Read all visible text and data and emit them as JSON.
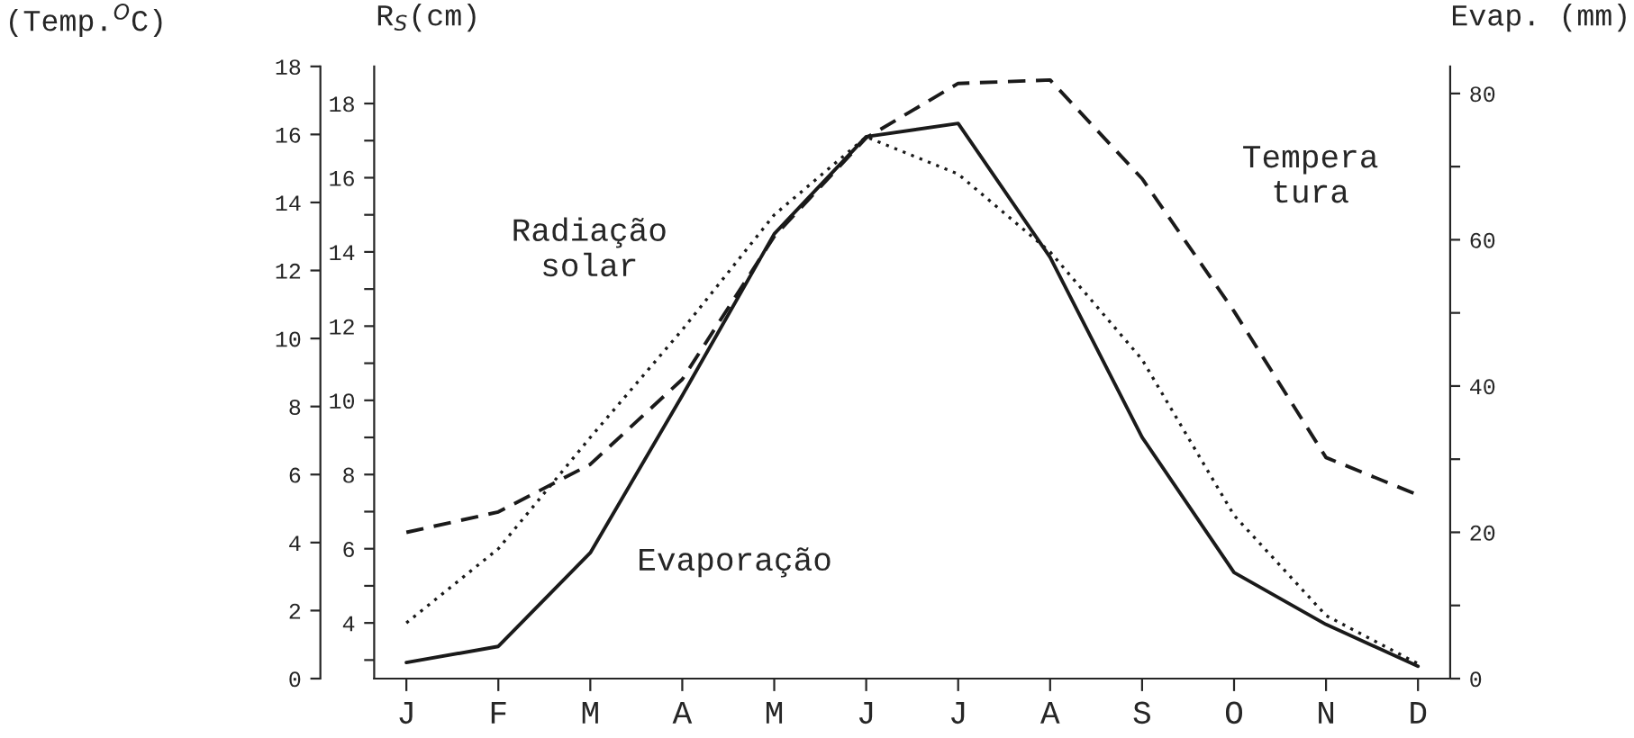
{
  "chart_data": {
    "type": "line",
    "categories": [
      "J",
      "F",
      "M",
      "A",
      "M",
      "J",
      "J",
      "A",
      "S",
      "O",
      "N",
      "D"
    ],
    "ylabel": "R$_{S}$(cm)",
    "y2label": "Evap. (mm)",
    "y3label": "(Temp.$^{O}$C)",
    "series": [
      {
        "axis": "y",
        "line_style": "dotted",
        "color": "#1a1a1a",
        "values": [
          4.0,
          6.0,
          9.0,
          11.9,
          15.0,
          17.1,
          16.1,
          14.0,
          11.1,
          6.9,
          4.2,
          2.9
        ]
      },
      {
        "axis": "y2",
        "line_style": "solid",
        "color": "#1a1a1a",
        "values": [
          2.2,
          4.4,
          17.2,
          38.7,
          60.8,
          74.1,
          75.9,
          57.6,
          33.0,
          14.5,
          7.4,
          1.7
        ]
      },
      {
        "axis": "y3",
        "line_style": "dashed",
        "color": "#1a1a1a",
        "values": [
          4.3,
          4.9,
          6.3,
          8.8,
          13.0,
          15.9,
          17.5,
          17.6,
          14.7,
          10.8,
          6.5,
          5.4
        ]
      }
    ],
    "ylim": [
      2.5,
      19
    ],
    "yticks": [
      {
        "value": 3,
        "label": null
      },
      4,
      {
        "value": 5,
        "label": null
      },
      6,
      {
        "value": 7,
        "label": null
      },
      8,
      {
        "value": 9,
        "label": null
      },
      10,
      {
        "value": 11,
        "label": null
      },
      12,
      {
        "value": 13,
        "label": null
      },
      14,
      {
        "value": 15,
        "label": null
      },
      16,
      {
        "value": 17,
        "label": null
      },
      18
    ],
    "y2lim": [
      0,
      83.7
    ],
    "y2ticks": [
      0,
      {
        "value": 10,
        "label": null
      },
      20,
      {
        "value": 30,
        "label": null
      },
      40,
      {
        "value": 50,
        "label": null
      },
      60,
      {
        "value": 70,
        "label": null
      },
      80
    ],
    "y3lim": [
      0,
      18
    ],
    "y3ticks": [
      0,
      2,
      4,
      6,
      8,
      10,
      12,
      14,
      16,
      18
    ],
    "annotations": [
      "Radiação\nsolar",
      "Evaporação",
      "Tempera\ntura"
    ],
    "grid": false,
    "legend": false,
    "marker": "none"
  }
}
